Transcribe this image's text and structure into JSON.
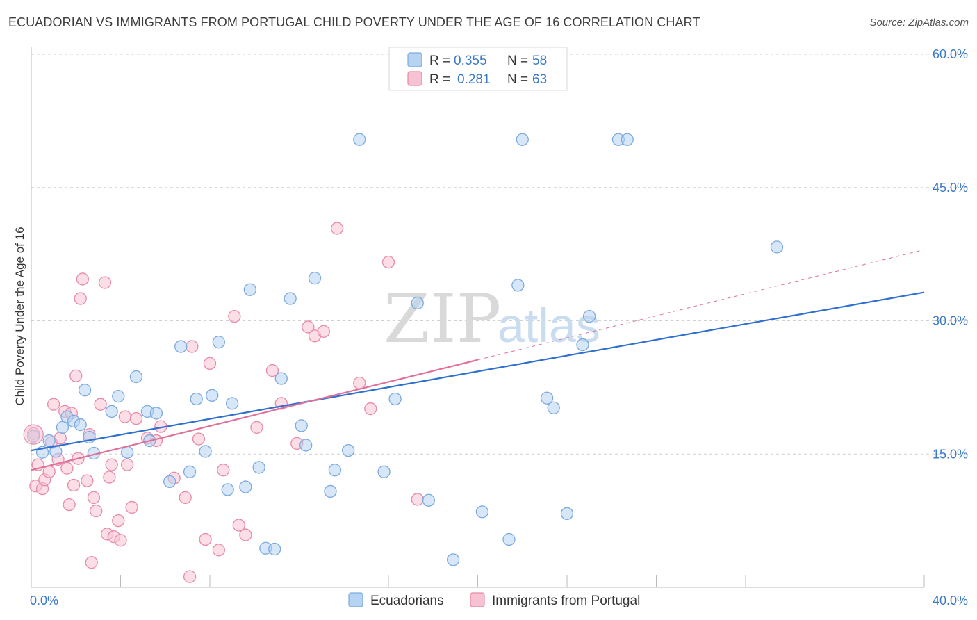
{
  "title": "ECUADORIAN VS IMMIGRANTS FROM PORTUGAL CHILD POVERTY UNDER THE AGE OF 16 CORRELATION CHART",
  "source": "Source: ZipAtlas.com",
  "watermark": {
    "zip": "ZIP",
    "atlas": "atlas"
  },
  "colors": {
    "blue_fill": "#b7d3f2",
    "blue_stroke": "#7aaae0",
    "blue_line": "#2f6fcf",
    "pink_fill": "#f7c2d2",
    "pink_stroke": "#e88aa8",
    "pink_line": "#e0709a",
    "grid": "#d0d0d0",
    "tick_text": "#3a78c9"
  },
  "legend": {
    "rows": [
      {
        "r_label": "R =",
        "r_value": "0.355",
        "n_label": "N =",
        "n_value": "58"
      },
      {
        "r_label": "R =",
        "r_value": "0.281",
        "n_label": "N =",
        "n_value": "63"
      }
    ]
  },
  "bottom_legend": [
    "Ecuadorians",
    "Immigrants from Portugal"
  ],
  "chart_data": {
    "type": "scatter",
    "title": "ECUADORIAN VS IMMIGRANTS FROM PORTUGAL CHILD POVERTY UNDER THE AGE OF 16 CORRELATION CHART",
    "xlabel": "",
    "ylabel": "Child Poverty Under the Age of 16",
    "xlim": [
      0,
      40
    ],
    "ylim": [
      0,
      60
    ],
    "x_tick_labels": [
      "0.0%",
      "40.0%"
    ],
    "y_ticks": [
      15,
      30,
      45,
      60
    ],
    "y_tick_labels": [
      "15.0%",
      "30.0%",
      "45.0%",
      "60.0%"
    ],
    "grid": "horizontal dashed",
    "legend_position": "top-center",
    "series": [
      {
        "name": "Ecuadorians",
        "color": "#7aaae0",
        "trend": {
          "x": [
            0,
            40
          ],
          "y": [
            15.4,
            33.2
          ],
          "style": "solid"
        },
        "points": [
          [
            0.1,
            17.0
          ],
          [
            0.5,
            15.2
          ],
          [
            0.8,
            16.5
          ],
          [
            1.1,
            15.3
          ],
          [
            1.4,
            18.0
          ],
          [
            1.6,
            19.2
          ],
          [
            1.9,
            18.7
          ],
          [
            2.2,
            18.3
          ],
          [
            2.4,
            22.2
          ],
          [
            2.6,
            16.9
          ],
          [
            2.8,
            15.1
          ],
          [
            3.6,
            19.8
          ],
          [
            3.9,
            21.5
          ],
          [
            4.3,
            15.2
          ],
          [
            4.7,
            23.7
          ],
          [
            5.2,
            19.8
          ],
          [
            5.6,
            19.6
          ],
          [
            5.3,
            16.5
          ],
          [
            6.2,
            11.9
          ],
          [
            6.7,
            27.1
          ],
          [
            7.1,
            13.0
          ],
          [
            7.4,
            21.2
          ],
          [
            7.8,
            15.3
          ],
          [
            8.1,
            21.6
          ],
          [
            8.4,
            27.6
          ],
          [
            8.8,
            11.0
          ],
          [
            9.0,
            20.7
          ],
          [
            9.6,
            11.3
          ],
          [
            9.8,
            33.5
          ],
          [
            10.2,
            13.5
          ],
          [
            10.5,
            4.4
          ],
          [
            10.9,
            4.3
          ],
          [
            11.2,
            23.5
          ],
          [
            11.6,
            32.5
          ],
          [
            12.1,
            18.2
          ],
          [
            12.3,
            16.0
          ],
          [
            12.7,
            34.8
          ],
          [
            13.4,
            10.8
          ],
          [
            13.6,
            13.2
          ],
          [
            14.2,
            15.4
          ],
          [
            14.7,
            50.4
          ],
          [
            15.8,
            13.0
          ],
          [
            16.3,
            21.2
          ],
          [
            17.3,
            32.0
          ],
          [
            17.8,
            9.8
          ],
          [
            18.9,
            3.1
          ],
          [
            20.2,
            8.5
          ],
          [
            21.4,
            5.4
          ],
          [
            21.8,
            34.0
          ],
          [
            22.0,
            50.4
          ],
          [
            23.1,
            21.3
          ],
          [
            23.4,
            20.2
          ],
          [
            24.0,
            8.3
          ],
          [
            24.7,
            27.3
          ],
          [
            25.0,
            30.5
          ],
          [
            26.3,
            50.4
          ],
          [
            26.7,
            50.4
          ],
          [
            33.4,
            38.3
          ]
        ]
      },
      {
        "name": "Immigrants from Portugal",
        "color": "#e88aa8",
        "trend": {
          "x": [
            0,
            20
          ],
          "y": [
            13.2,
            25.6
          ],
          "style": "solid",
          "extension": {
            "x": [
              20,
              40
            ],
            "y": [
              25.6,
              38.0
            ],
            "style": "dashed"
          }
        },
        "points": [
          [
            0.1,
            17.3
          ],
          [
            0.2,
            11.4
          ],
          [
            0.3,
            13.8
          ],
          [
            0.5,
            11.1
          ],
          [
            0.6,
            12.1
          ],
          [
            0.8,
            13.0
          ],
          [
            0.9,
            16.3
          ],
          [
            1.0,
            20.6
          ],
          [
            1.2,
            14.4
          ],
          [
            1.3,
            16.8
          ],
          [
            1.5,
            19.8
          ],
          [
            1.6,
            13.4
          ],
          [
            1.7,
            9.3
          ],
          [
            1.8,
            19.6
          ],
          [
            1.9,
            11.5
          ],
          [
            2.0,
            23.8
          ],
          [
            2.1,
            14.5
          ],
          [
            2.2,
            32.5
          ],
          [
            2.3,
            34.7
          ],
          [
            2.5,
            12.0
          ],
          [
            2.6,
            17.2
          ],
          [
            2.7,
            2.8
          ],
          [
            2.8,
            10.1
          ],
          [
            2.9,
            8.6
          ],
          [
            3.1,
            20.6
          ],
          [
            3.3,
            34.3
          ],
          [
            3.4,
            6.0
          ],
          [
            3.5,
            12.4
          ],
          [
            3.6,
            13.8
          ],
          [
            3.7,
            5.7
          ],
          [
            3.9,
            7.5
          ],
          [
            4.0,
            5.3
          ],
          [
            4.2,
            19.2
          ],
          [
            4.3,
            13.8
          ],
          [
            4.5,
            9.0
          ],
          [
            4.7,
            19.0
          ],
          [
            5.2,
            16.8
          ],
          [
            5.6,
            16.5
          ],
          [
            5.8,
            18.1
          ],
          [
            6.4,
            12.3
          ],
          [
            6.9,
            10.1
          ],
          [
            7.1,
            1.2
          ],
          [
            7.2,
            27.1
          ],
          [
            7.5,
            16.7
          ],
          [
            7.8,
            5.4
          ],
          [
            8.0,
            25.2
          ],
          [
            8.4,
            4.2
          ],
          [
            8.6,
            13.2
          ],
          [
            9.1,
            30.5
          ],
          [
            9.3,
            7.0
          ],
          [
            9.6,
            5.9
          ],
          [
            10.1,
            18.0
          ],
          [
            10.8,
            24.4
          ],
          [
            11.2,
            20.7
          ],
          [
            11.9,
            16.2
          ],
          [
            12.4,
            29.3
          ],
          [
            12.7,
            28.3
          ],
          [
            13.1,
            28.8
          ],
          [
            13.7,
            40.4
          ],
          [
            14.7,
            23.0
          ],
          [
            15.2,
            20.1
          ],
          [
            16.0,
            36.6
          ],
          [
            17.3,
            9.9
          ]
        ]
      }
    ]
  }
}
